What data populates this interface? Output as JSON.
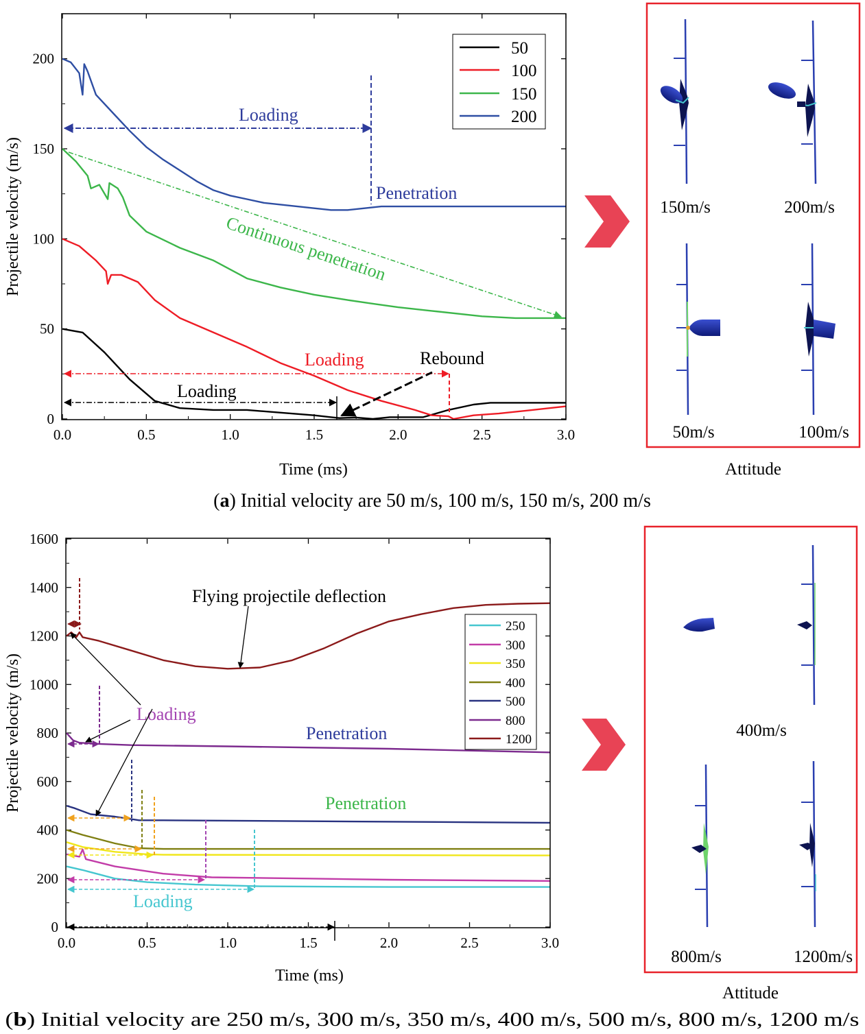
{
  "colors": {
    "v50": "#000000",
    "v100": "#ee1c25",
    "v150": "#3cb64a",
    "v200": "#2e4ea3",
    "v250": "#45c6cf",
    "v300": "#c23ca8",
    "v350": "#f0e619",
    "v400": "#7f7f12",
    "v500": "#283280",
    "v800": "#7c2a8e",
    "v1200": "#8b1a1a",
    "frame": "#e8222a",
    "arrow": "#e84355",
    "ann_blue": "#2e3c9c",
    "ann_green": "#3cb64a",
    "ann_red": "#ee1c25",
    "ann_purple": "#a445b2",
    "ann_cyan": "#45c6cf",
    "ann_orange": "#f0a21e",
    "projectile": "#1f2f9a"
  },
  "chart_data": [
    {
      "type": "line",
      "panel": "a",
      "xlabel": "Time (ms)",
      "ylabel": "Projectile velocity (m/s)",
      "xlim": [
        0,
        3.0
      ],
      "ylim": [
        0,
        225
      ],
      "xticks": [
        "0.0",
        "0.5",
        "1.0",
        "1.5",
        "2.0",
        "2.5",
        "3.0"
      ],
      "yticks": [
        "0",
        "50",
        "100",
        "150",
        "200"
      ],
      "legend": [
        "50",
        "100",
        "150",
        "200"
      ],
      "series": [
        {
          "name": "50",
          "color_key": "v50",
          "x": [
            0,
            0.12,
            0.25,
            0.4,
            0.55,
            0.7,
            0.9,
            1.1,
            1.3,
            1.5,
            1.6,
            1.65,
            1.75,
            1.85,
            1.95,
            2.15,
            2.3,
            2.45,
            2.55,
            3.0
          ],
          "y": [
            50,
            48,
            37,
            22,
            10,
            6,
            5,
            5,
            3.5,
            2,
            1,
            0.5,
            0.8,
            0,
            1,
            1,
            5,
            8,
            9,
            9
          ]
        },
        {
          "name": "100",
          "color_key": "v100",
          "x": [
            0,
            0.1,
            0.2,
            0.26,
            0.27,
            0.29,
            0.35,
            0.45,
            0.55,
            0.7,
            0.9,
            1.1,
            1.3,
            1.5,
            1.7,
            1.9,
            2.1,
            2.2,
            2.3,
            2.33,
            2.45,
            2.6,
            2.8,
            3.0
          ],
          "y": [
            100,
            96,
            88,
            82,
            75,
            80,
            80,
            76,
            66,
            56,
            48,
            40,
            31,
            24,
            16,
            10,
            5,
            2,
            1.5,
            0,
            2,
            3,
            5,
            7
          ]
        },
        {
          "name": "150",
          "color_key": "v150",
          "x": [
            0,
            0.08,
            0.15,
            0.17,
            0.22,
            0.27,
            0.28,
            0.33,
            0.36,
            0.4,
            0.5,
            0.7,
            0.9,
            1.1,
            1.3,
            1.5,
            1.7,
            1.85,
            2.0,
            2.2,
            2.5,
            2.7,
            3.0
          ],
          "y": [
            150,
            143,
            135,
            128,
            130,
            122,
            131,
            128,
            123,
            113,
            104,
            95,
            88,
            78,
            73,
            69,
            66,
            64,
            62,
            60,
            57,
            56,
            56
          ]
        },
        {
          "name": "200",
          "color_key": "v200",
          "x": [
            0,
            0.05,
            0.1,
            0.12,
            0.13,
            0.15,
            0.2,
            0.3,
            0.4,
            0.5,
            0.6,
            0.7,
            0.8,
            0.9,
            1.0,
            1.1,
            1.2,
            1.3,
            1.4,
            1.5,
            1.6,
            1.7,
            1.8,
            1.9,
            2.0,
            3.0
          ],
          "y": [
            200,
            198,
            192,
            180,
            197,
            193,
            180,
            170,
            160,
            151,
            144,
            138,
            132,
            127,
            124,
            122,
            120,
            119,
            118,
            117,
            116,
            116,
            117,
            118,
            118,
            118
          ]
        }
      ]
    },
    {
      "type": "line",
      "panel": "b",
      "xlabel": "Time (ms)",
      "ylabel": "Projectile velocity (m/s)",
      "xlim": [
        0,
        3.0
      ],
      "ylim": [
        0,
        1600
      ],
      "xticks": [
        "0.0",
        "0.5",
        "1.0",
        "1.5",
        "2.0",
        "2.5",
        "3.0"
      ],
      "yticks": [
        "0",
        "200",
        "400",
        "600",
        "800",
        "1000",
        "1200",
        "1400",
        "1600"
      ],
      "legend": [
        "250",
        "300",
        "350",
        "400",
        "500",
        "800",
        "1200"
      ],
      "series": [
        {
          "name": "250",
          "color_key": "v250",
          "x": [
            0,
            0.1,
            0.3,
            0.5,
            0.8,
            1.2,
            2.0,
            3.0
          ],
          "y": [
            250,
            235,
            200,
            185,
            175,
            168,
            165,
            165
          ]
        },
        {
          "name": "300",
          "color_key": "v300",
          "x": [
            0,
            0.08,
            0.1,
            0.12,
            0.3,
            0.6,
            0.9,
            1.5,
            2.0,
            3.0
          ],
          "y": [
            300,
            290,
            320,
            280,
            250,
            220,
            205,
            200,
            195,
            190
          ]
        },
        {
          "name": "350",
          "color_key": "v350",
          "x": [
            0,
            0.1,
            0.3,
            0.5,
            0.6,
            3.0
          ],
          "y": [
            350,
            330,
            310,
            300,
            298,
            295
          ]
        },
        {
          "name": "400",
          "color_key": "v400",
          "x": [
            0,
            0.1,
            0.3,
            0.45,
            0.6,
            3.0
          ],
          "y": [
            400,
            380,
            345,
            325,
            322,
            322
          ]
        },
        {
          "name": "500",
          "color_key": "v500",
          "x": [
            0,
            0.05,
            0.15,
            0.3,
            0.45,
            0.6,
            3.0
          ],
          "y": [
            500,
            490,
            465,
            455,
            440,
            440,
            430
          ]
        },
        {
          "name": "800",
          "color_key": "v800",
          "x": [
            0,
            0.04,
            0.08,
            0.2,
            0.4,
            1.0,
            2.0,
            3.0
          ],
          "y": [
            800,
            770,
            760,
            755,
            750,
            745,
            735,
            720
          ]
        },
        {
          "name": "1200",
          "color_key": "v1200",
          "x": [
            0,
            0.03,
            0.06,
            0.08,
            0.1,
            0.2,
            0.4,
            0.6,
            0.8,
            1.0,
            1.2,
            1.4,
            1.6,
            1.8,
            2.0,
            2.2,
            2.4,
            2.6,
            2.8,
            3.0
          ],
          "y": [
            1200,
            1215,
            1195,
            1215,
            1195,
            1180,
            1140,
            1100,
            1075,
            1065,
            1070,
            1100,
            1150,
            1210,
            1260,
            1290,
            1315,
            1328,
            1333,
            1335
          ]
        }
      ]
    }
  ],
  "panel_a": {
    "annotations": {
      "loading_blue": "Loading",
      "penetration_blue": "Penetration",
      "continuous_green": "Continuous penetration",
      "loading_red": "Loading",
      "rebound_black": "Rebound",
      "loading_black": "Loading"
    },
    "attitude": {
      "labels": [
        "150m/s",
        "200m/s",
        "50m/s",
        "100m/s"
      ],
      "title": "Attitude"
    },
    "caption": {
      "letter": "a",
      "text": ") Initial velocity are 50 m/s, 100 m/s, 150 m/s, 200 m/s"
    }
  },
  "panel_b": {
    "annotations": {
      "flying": "Flying projectile deflection",
      "loading_purple": "Loading",
      "penetration_blue": "Penetration",
      "penetration_green": "Penetration",
      "loading_cyan": "Loading"
    },
    "attitude": {
      "labels": [
        "400m/s",
        "800m/s",
        "1200m/s"
      ],
      "title": "Attitude"
    },
    "caption": {
      "letter": "b",
      "text": ") Initial velocity are 250 m/s, 300 m/s, 350 m/s, 400 m/s, 500 m/s, 800 m/s, 1200 m/s"
    }
  }
}
